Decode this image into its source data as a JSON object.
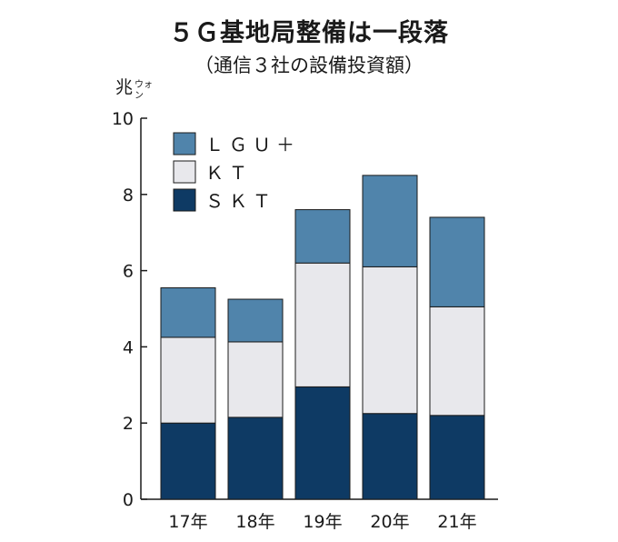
{
  "chart_data": {
    "type": "bar",
    "stacked": true,
    "title": "５Ｇ基地局整備は一段落",
    "subtitle": "（通信３社の設備投資額）",
    "unit": {
      "main": "兆",
      "sub1": "ウォ",
      "sub2": "ン"
    },
    "categories": [
      "17年",
      "18年",
      "19年",
      "20年",
      "21年"
    ],
    "ylim": [
      0,
      10
    ],
    "yticks": [
      0,
      2,
      4,
      6,
      8,
      10
    ],
    "grid": false,
    "legend_position": "top-left",
    "series": [
      {
        "name": "ＳＫＴ",
        "color": "#0e3a64",
        "values": [
          2.0,
          2.15,
          2.95,
          2.25,
          2.2
        ]
      },
      {
        "name": "ＫＴ",
        "color": "#e8e8ec",
        "values": [
          2.25,
          1.98,
          3.25,
          3.85,
          2.85
        ]
      },
      {
        "name": "ＬＧＵ＋",
        "color": "#5084ab",
        "values": [
          1.3,
          1.12,
          1.4,
          2.4,
          2.35
        ]
      }
    ]
  }
}
